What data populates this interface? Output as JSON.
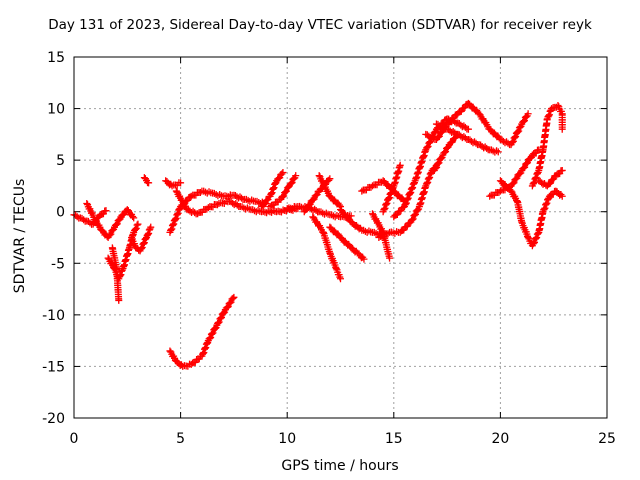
{
  "chart_data": {
    "type": "scatter",
    "title": "Day 131 of 2023, Sidereal Day-to-day VTEC variation (SDTVAR) for receiver reyk",
    "xlabel": "GPS time / hours",
    "ylabel": "SDTVAR / TECUs",
    "xlim": [
      0,
      25
    ],
    "ylim": [
      -20,
      15
    ],
    "xticks": [
      0,
      5,
      10,
      15,
      20,
      25
    ],
    "yticks": [
      -20,
      -15,
      -10,
      -5,
      0,
      5,
      10,
      15
    ],
    "grid": true,
    "marker": "+",
    "marker_color": "#ff0000",
    "tracks": [
      {
        "name": "track-1",
        "points": [
          [
            0.0,
            -0.3
          ],
          [
            0.3,
            -0.6
          ],
          [
            0.6,
            -0.9
          ],
          [
            0.9,
            -1.2
          ],
          [
            1.2,
            -0.4
          ],
          [
            1.5,
            0.1
          ]
        ]
      },
      {
        "name": "track-2",
        "points": [
          [
            0.6,
            0.8
          ],
          [
            1.0,
            -0.8
          ],
          [
            1.3,
            -1.8
          ],
          [
            1.6,
            -2.5
          ],
          [
            1.9,
            -1.5
          ],
          [
            2.2,
            -0.5
          ],
          [
            2.5,
            0.2
          ],
          [
            2.8,
            -0.6
          ]
        ]
      },
      {
        "name": "track-3",
        "points": [
          [
            1.6,
            -4.5
          ],
          [
            1.9,
            -5.5
          ],
          [
            2.1,
            -6.5
          ],
          [
            2.3,
            -5.5
          ],
          [
            2.6,
            -3.5
          ],
          [
            2.8,
            -2.0
          ],
          [
            3.0,
            -1.2
          ]
        ]
      },
      {
        "name": "track-4",
        "points": [
          [
            1.8,
            -3.5
          ],
          [
            2.0,
            -5.5
          ],
          [
            2.1,
            -8.6
          ]
        ]
      },
      {
        "name": "track-5",
        "points": [
          [
            2.7,
            -2.5
          ],
          [
            2.9,
            -3.5
          ],
          [
            3.1,
            -3.8
          ],
          [
            3.4,
            -2.5
          ],
          [
            3.6,
            -1.5
          ]
        ]
      },
      {
        "name": "track-6",
        "points": [
          [
            3.3,
            3.3
          ],
          [
            3.5,
            2.8
          ]
        ]
      },
      {
        "name": "track-7",
        "points": [
          [
            4.3,
            3.0
          ],
          [
            4.6,
            2.5
          ],
          [
            5.0,
            2.8
          ]
        ]
      },
      {
        "name": "track-8",
        "points": [
          [
            4.5,
            -2.0
          ],
          [
            5.0,
            0.5
          ],
          [
            5.5,
            1.5
          ],
          [
            6.0,
            2.0
          ],
          [
            6.5,
            1.8
          ],
          [
            7.0,
            1.5
          ],
          [
            7.5,
            1.6
          ],
          [
            8.0,
            1.2
          ],
          [
            8.5,
            1.0
          ],
          [
            9.0,
            0.8
          ]
        ]
      },
      {
        "name": "track-9",
        "points": [
          [
            4.8,
            2.0
          ],
          [
            5.3,
            0.2
          ],
          [
            5.8,
            -0.2
          ],
          [
            6.3,
            0.4
          ],
          [
            6.8,
            0.8
          ],
          [
            7.3,
            1.0
          ],
          [
            7.8,
            0.5
          ],
          [
            8.3,
            0.2
          ],
          [
            8.8,
            0.0
          ],
          [
            9.5,
            0.0
          ],
          [
            10.5,
            0.3
          ]
        ]
      },
      {
        "name": "track-10",
        "points": [
          [
            4.5,
            -13.5
          ],
          [
            4.8,
            -14.5
          ],
          [
            5.1,
            -15.0
          ],
          [
            5.5,
            -14.8
          ],
          [
            6.0,
            -14.0
          ],
          [
            6.3,
            -12.5
          ],
          [
            6.7,
            -11.0
          ],
          [
            7.1,
            -9.5
          ],
          [
            7.5,
            -8.3
          ]
        ]
      },
      {
        "name": "track-11",
        "points": [
          [
            8.8,
            0.5
          ],
          [
            9.2,
            1.5
          ],
          [
            9.5,
            3.0
          ],
          [
            9.8,
            3.8
          ]
        ]
      },
      {
        "name": "track-12",
        "points": [
          [
            9.2,
            0.5
          ],
          [
            9.7,
            1.2
          ],
          [
            10.1,
            2.5
          ],
          [
            10.4,
            3.5
          ]
        ]
      },
      {
        "name": "track-13",
        "points": [
          [
            10.0,
            0.3
          ],
          [
            10.5,
            0.5
          ],
          [
            11.0,
            0.4
          ],
          [
            11.5,
            0.0
          ],
          [
            12.0,
            -0.3
          ],
          [
            12.5,
            -0.5
          ],
          [
            13.0,
            -0.4
          ]
        ]
      },
      {
        "name": "track-14",
        "points": [
          [
            10.8,
            0.0
          ],
          [
            11.5,
            2.0
          ],
          [
            12.0,
            3.2
          ]
        ]
      },
      {
        "name": "track-15",
        "points": [
          [
            11.2,
            -0.5
          ],
          [
            11.7,
            -2.0
          ],
          [
            12.0,
            -4.0
          ],
          [
            12.3,
            -5.5
          ],
          [
            12.5,
            -6.5
          ]
        ]
      },
      {
        "name": "track-16",
        "points": [
          [
            11.5,
            3.5
          ],
          [
            12.0,
            1.5
          ],
          [
            12.5,
            0.5
          ]
        ]
      },
      {
        "name": "track-17",
        "points": [
          [
            12.0,
            -1.5
          ],
          [
            12.5,
            -2.5
          ],
          [
            13.0,
            -3.5
          ],
          [
            13.3,
            -4.0
          ],
          [
            13.6,
            -4.6
          ]
        ]
      },
      {
        "name": "track-18",
        "points": [
          [
            12.5,
            0.2
          ],
          [
            13.0,
            -1.0
          ],
          [
            13.5,
            -1.8
          ],
          [
            14.0,
            -2.0
          ],
          [
            14.5,
            -2.2
          ]
        ]
      },
      {
        "name": "track-19",
        "points": [
          [
            14.0,
            -0.2
          ],
          [
            14.5,
            -2.0
          ],
          [
            14.8,
            -4.5
          ]
        ]
      },
      {
        "name": "track-20",
        "points": [
          [
            13.5,
            2.0
          ],
          [
            14.0,
            2.5
          ],
          [
            14.5,
            3.0
          ],
          [
            15.0,
            2.0
          ],
          [
            15.5,
            1.0
          ]
        ]
      },
      {
        "name": "track-21",
        "points": [
          [
            14.5,
            0.0
          ],
          [
            15.0,
            2.5
          ],
          [
            15.3,
            4.5
          ]
        ]
      },
      {
        "name": "track-22",
        "points": [
          [
            14.3,
            -2.5
          ],
          [
            14.8,
            -2.0
          ],
          [
            15.3,
            -2.0
          ],
          [
            15.8,
            -1.0
          ],
          [
            16.2,
            0.5
          ],
          [
            16.5,
            2.5
          ],
          [
            16.8,
            4.0
          ],
          [
            17.0,
            4.5
          ]
        ]
      },
      {
        "name": "track-23",
        "points": [
          [
            15.0,
            -0.5
          ],
          [
            15.5,
            0.5
          ],
          [
            16.0,
            3.0
          ],
          [
            16.5,
            6.0
          ],
          [
            17.0,
            8.0
          ],
          [
            17.5,
            9.0
          ],
          [
            18.0,
            8.6
          ],
          [
            18.5,
            8.0
          ]
        ]
      },
      {
        "name": "track-24",
        "points": [
          [
            16.5,
            7.5
          ],
          [
            17.0,
            7.0
          ],
          [
            17.5,
            8.5
          ],
          [
            18.0,
            9.5
          ],
          [
            18.5,
            10.5
          ],
          [
            19.0,
            9.5
          ],
          [
            19.5,
            8.0
          ],
          [
            20.0,
            7.0
          ],
          [
            20.5,
            6.5
          ],
          [
            21.0,
            8.5
          ],
          [
            21.3,
            9.5
          ]
        ]
      },
      {
        "name": "track-25",
        "points": [
          [
            17.0,
            8.5
          ],
          [
            17.5,
            8.0
          ],
          [
            18.0,
            7.5
          ],
          [
            18.5,
            7.0
          ],
          [
            19.0,
            6.5
          ],
          [
            19.5,
            6.0
          ],
          [
            19.9,
            5.8
          ]
        ]
      },
      {
        "name": "track-26",
        "points": [
          [
            16.9,
            4.0
          ],
          [
            17.3,
            5.5
          ],
          [
            17.6,
            6.5
          ],
          [
            18.0,
            7.5
          ]
        ]
      },
      {
        "name": "track-27",
        "points": [
          [
            19.5,
            1.5
          ],
          [
            20.0,
            2.0
          ],
          [
            20.5,
            2.5
          ],
          [
            21.0,
            4.0
          ],
          [
            21.5,
            5.5
          ],
          [
            21.8,
            6.0
          ]
        ]
      },
      {
        "name": "track-28",
        "points": [
          [
            20.0,
            3.0
          ],
          [
            20.5,
            2.0
          ],
          [
            20.8,
            1.0
          ],
          [
            21.0,
            -1.0
          ],
          [
            21.3,
            -2.5
          ],
          [
            21.5,
            -3.3
          ],
          [
            21.8,
            -2.0
          ],
          [
            22.0,
            0.0
          ],
          [
            22.3,
            1.5
          ],
          [
            22.6,
            2.0
          ],
          [
            22.9,
            1.5
          ]
        ]
      },
      {
        "name": "track-29",
        "points": [
          [
            21.5,
            2.5
          ],
          [
            21.8,
            4.0
          ],
          [
            22.0,
            6.0
          ],
          [
            22.2,
            9.0
          ],
          [
            22.4,
            10.0
          ],
          [
            22.7,
            10.3
          ],
          [
            22.9,
            9.5
          ],
          [
            22.9,
            8.0
          ]
        ]
      },
      {
        "name": "track-30",
        "points": [
          [
            21.8,
            3.0
          ],
          [
            22.2,
            2.5
          ],
          [
            22.6,
            3.5
          ],
          [
            22.9,
            4.0
          ]
        ]
      }
    ]
  }
}
